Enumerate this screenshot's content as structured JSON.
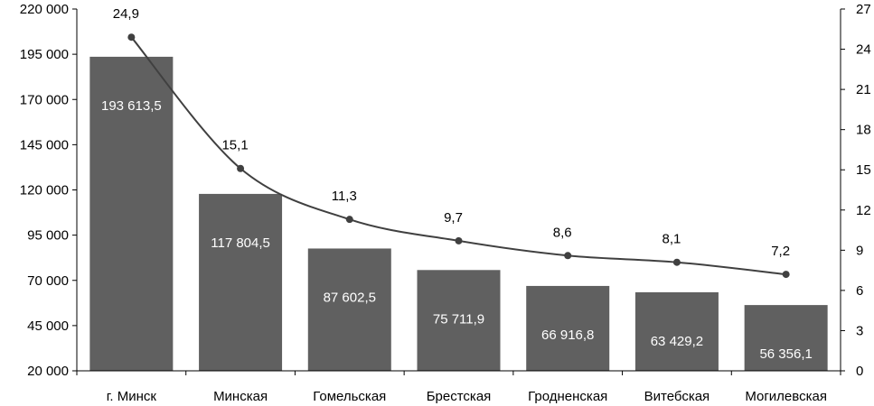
{
  "chart_data": {
    "type": "bar",
    "categories": [
      "г. Минск",
      "Минская",
      "Гомельская",
      "Брестская",
      "Гродненская",
      "Витебская",
      "Могилевская"
    ],
    "series": [
      {
        "type": "bar",
        "axis": "left",
        "values": [
          193613.5,
          117804.5,
          87602.5,
          75711.9,
          66916.8,
          63429.2,
          56356.1
        ],
        "value_labels": [
          "193 613,5",
          "117 804,5",
          "87 602,5",
          "75 711,9",
          "66 916,8",
          "63 429,2",
          "56 356,1"
        ]
      },
      {
        "type": "line",
        "axis": "right",
        "values": [
          24.9,
          15.1,
          11.3,
          9.7,
          8.6,
          8.1,
          7.2
        ],
        "value_labels": [
          "24,9",
          "15,1",
          "11,3",
          "9,7",
          "8,6",
          "8,1",
          "7,2"
        ]
      }
    ],
    "y_left": {
      "ylim": [
        20000,
        220000
      ],
      "ticks": [
        20000,
        45000,
        70000,
        95000,
        120000,
        145000,
        170000,
        195000,
        220000
      ],
      "tick_labels": [
        "20 000",
        "45 000",
        "70 000",
        "95 000",
        "120 000",
        "145 000",
        "170 000",
        "195 000",
        "220 000"
      ]
    },
    "y_right": {
      "ylim": [
        0,
        27
      ],
      "ticks": [
        0,
        3,
        6,
        9,
        12,
        15,
        18,
        21,
        24,
        27
      ],
      "tick_labels": [
        "0",
        "3",
        "6",
        "9",
        "12",
        "15",
        "18",
        "21",
        "24",
        "27"
      ]
    },
    "title": "",
    "xlabel": "",
    "ylabel": "",
    "grid": false,
    "legend": "none",
    "colors": {
      "bar": "#606060",
      "line": "#404040",
      "marker": "#404040",
      "axis": "#000000"
    }
  }
}
